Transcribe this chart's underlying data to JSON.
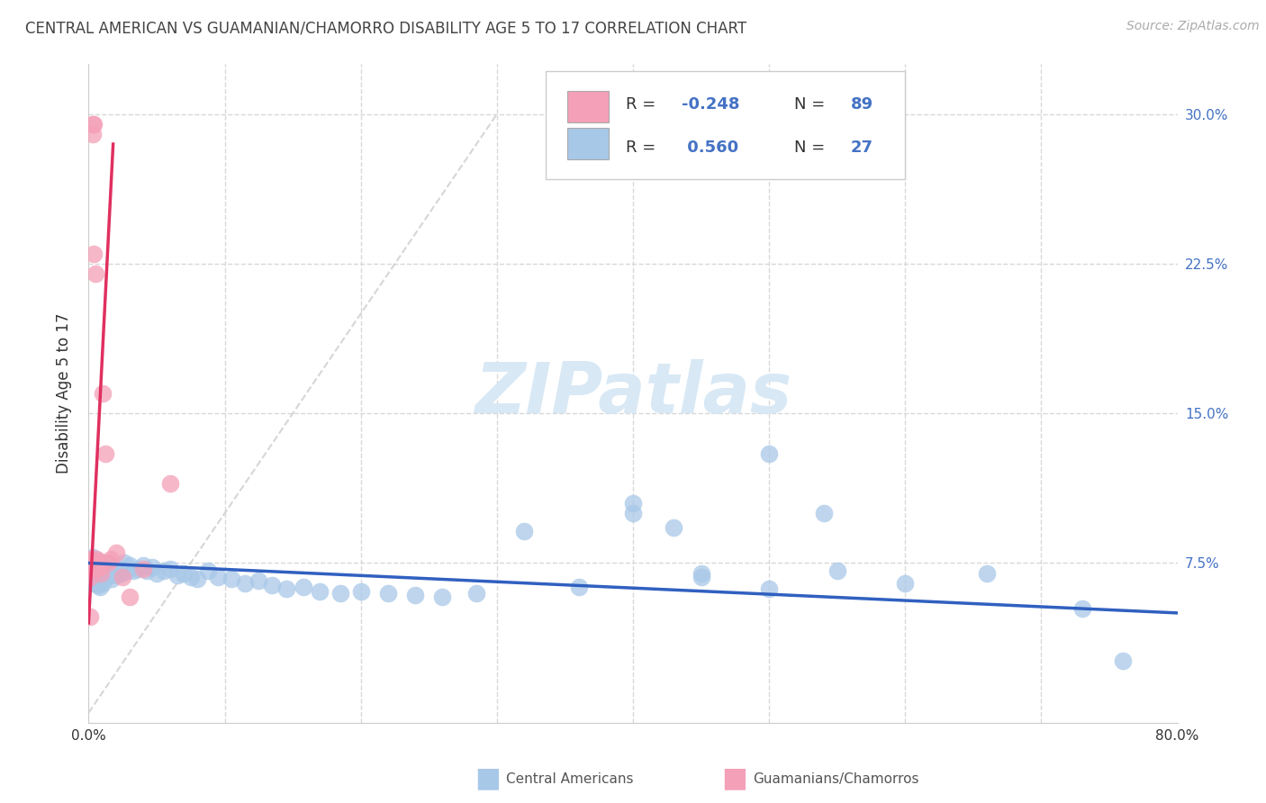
{
  "title": "CENTRAL AMERICAN VS GUAMANIAN/CHAMORRO DISABILITY AGE 5 TO 17 CORRELATION CHART",
  "source": "Source: ZipAtlas.com",
  "ylabel": "Disability Age 5 to 17",
  "xmin": 0.0,
  "xmax": 0.8,
  "ymin": -0.005,
  "ymax": 0.325,
  "blue_R": -0.248,
  "blue_N": 89,
  "pink_R": 0.56,
  "pink_N": 27,
  "blue_color": "#a8c8e8",
  "pink_color": "#f4a0b8",
  "blue_line_color": "#3060c0",
  "pink_line_color": "#e03060",
  "ref_line_color": "#cccccc",
  "grid_color": "#d8d8d8",
  "title_color": "#444444",
  "axis_color": "#4472c4",
  "text_color": "#333333",
  "watermark_color": "#d8e8f5",
  "blue_scatter_x": [
    0.001,
    0.001,
    0.001,
    0.002,
    0.002,
    0.002,
    0.003,
    0.003,
    0.003,
    0.003,
    0.004,
    0.004,
    0.004,
    0.005,
    0.005,
    0.005,
    0.006,
    0.006,
    0.006,
    0.007,
    0.007,
    0.007,
    0.008,
    0.008,
    0.008,
    0.009,
    0.009,
    0.01,
    0.01,
    0.01,
    0.011,
    0.011,
    0.012,
    0.012,
    0.013,
    0.014,
    0.015,
    0.015,
    0.016,
    0.017,
    0.018,
    0.02,
    0.022,
    0.024,
    0.026,
    0.028,
    0.03,
    0.033,
    0.036,
    0.04,
    0.043,
    0.047,
    0.05,
    0.055,
    0.06,
    0.065,
    0.07,
    0.075,
    0.08,
    0.088,
    0.095,
    0.105,
    0.115,
    0.125,
    0.135,
    0.145,
    0.158,
    0.17,
    0.185,
    0.2,
    0.22,
    0.24,
    0.26,
    0.285,
    0.32,
    0.36,
    0.4,
    0.45,
    0.5,
    0.55,
    0.6,
    0.66,
    0.73,
    0.5,
    0.4,
    0.54,
    0.45,
    0.43,
    0.76
  ],
  "blue_scatter_y": [
    0.075,
    0.073,
    0.07,
    0.076,
    0.072,
    0.068,
    0.078,
    0.074,
    0.069,
    0.065,
    0.076,
    0.072,
    0.067,
    0.075,
    0.071,
    0.067,
    0.074,
    0.07,
    0.065,
    0.073,
    0.069,
    0.064,
    0.072,
    0.068,
    0.063,
    0.071,
    0.066,
    0.074,
    0.07,
    0.065,
    0.073,
    0.068,
    0.075,
    0.07,
    0.068,
    0.072,
    0.074,
    0.069,
    0.072,
    0.067,
    0.071,
    0.069,
    0.072,
    0.07,
    0.075,
    0.071,
    0.074,
    0.071,
    0.072,
    0.074,
    0.071,
    0.073,
    0.07,
    0.071,
    0.072,
    0.069,
    0.07,
    0.068,
    0.067,
    0.071,
    0.068,
    0.067,
    0.065,
    0.066,
    0.064,
    0.062,
    0.063,
    0.061,
    0.06,
    0.061,
    0.06,
    0.059,
    0.058,
    0.06,
    0.091,
    0.063,
    0.105,
    0.07,
    0.062,
    0.071,
    0.065,
    0.07,
    0.052,
    0.13,
    0.1,
    0.1,
    0.068,
    0.093,
    0.026
  ],
  "pink_scatter_x": [
    0.001,
    0.001,
    0.001,
    0.002,
    0.002,
    0.003,
    0.003,
    0.004,
    0.004,
    0.004,
    0.005,
    0.005,
    0.006,
    0.006,
    0.007,
    0.008,
    0.009,
    0.01,
    0.012,
    0.014,
    0.016,
    0.02,
    0.025,
    0.03,
    0.04,
    0.06,
    0.001
  ],
  "pink_scatter_y": [
    0.076,
    0.073,
    0.068,
    0.077,
    0.072,
    0.295,
    0.29,
    0.295,
    0.23,
    0.075,
    0.22,
    0.075,
    0.077,
    0.072,
    0.076,
    0.073,
    0.07,
    0.16,
    0.13,
    0.075,
    0.077,
    0.08,
    0.068,
    0.058,
    0.072,
    0.115,
    0.048
  ]
}
